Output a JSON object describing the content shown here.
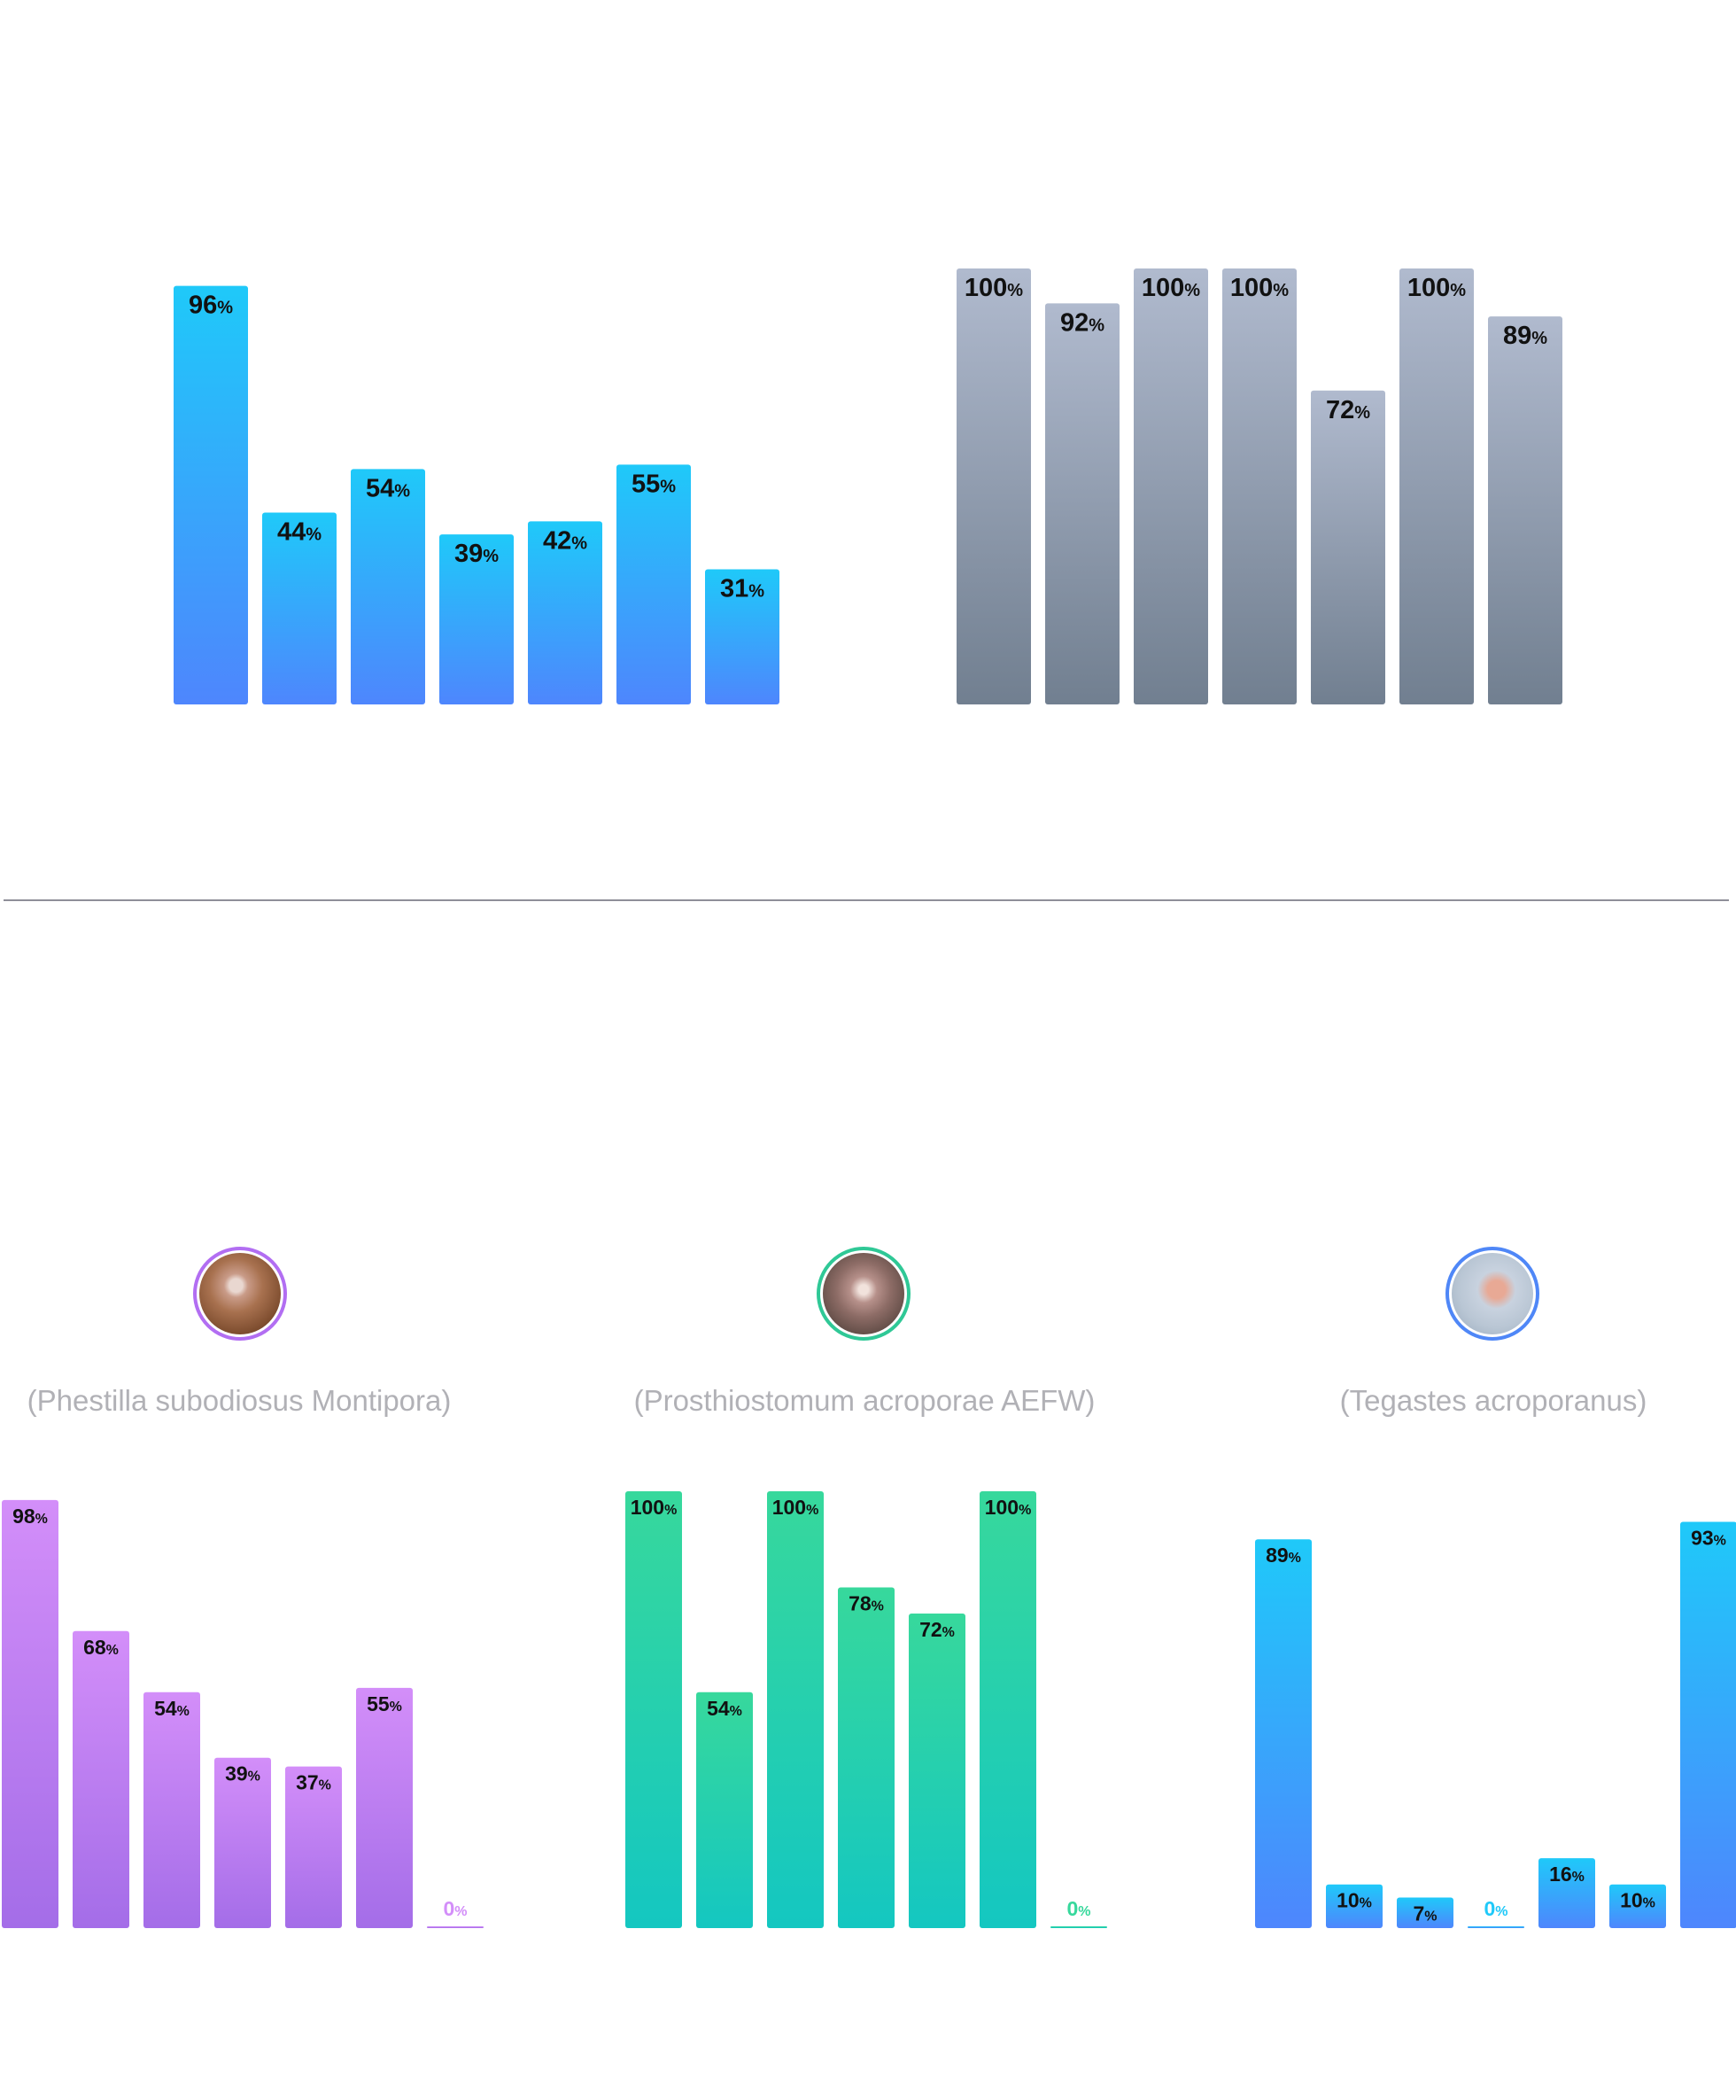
{
  "colors": {
    "chart1": [
      "#1fc9f9",
      "#4e86fd"
    ],
    "chart2": [
      "#b0bace",
      "#717f90"
    ],
    "chart3": [
      "#d38ef9",
      "#a46de8"
    ],
    "chart4": [
      "#37d89c",
      "#14c7c1"
    ],
    "chart5": [
      "#1fc9f9",
      "#4e86fd"
    ],
    "divider": "#8f8f99",
    "species_text": "#b1b1b6"
  },
  "species": [
    {
      "name": "(Phestilla subodiosus Montipora)",
      "icon": "nudibranch-photo-icon"
    },
    {
      "name": "(Prosthiostomum acroporae AEFW)",
      "icon": "flatworm-photo-icon"
    },
    {
      "name": "(Tegastes acroporanus)",
      "icon": "copepod-photo-icon"
    }
  ],
  "chart_data": [
    {
      "type": "bar",
      "values": [
        96,
        44,
        54,
        39,
        42,
        55,
        31
      ],
      "unit": "%",
      "ylim": [
        0,
        100
      ]
    },
    {
      "type": "bar",
      "values": [
        100,
        92,
        100,
        100,
        72,
        100,
        89
      ],
      "unit": "%",
      "ylim": [
        0,
        100
      ]
    },
    {
      "type": "bar",
      "values": [
        98,
        68,
        54,
        39,
        37,
        55,
        0
      ],
      "unit": "%",
      "ylim": [
        0,
        100
      ]
    },
    {
      "type": "bar",
      "values": [
        100,
        54,
        100,
        78,
        72,
        100,
        0
      ],
      "unit": "%",
      "ylim": [
        0,
        100
      ]
    },
    {
      "type": "bar",
      "values": [
        89,
        10,
        7,
        0,
        16,
        10,
        93
      ],
      "unit": "%",
      "ylim": [
        0,
        100
      ]
    }
  ]
}
